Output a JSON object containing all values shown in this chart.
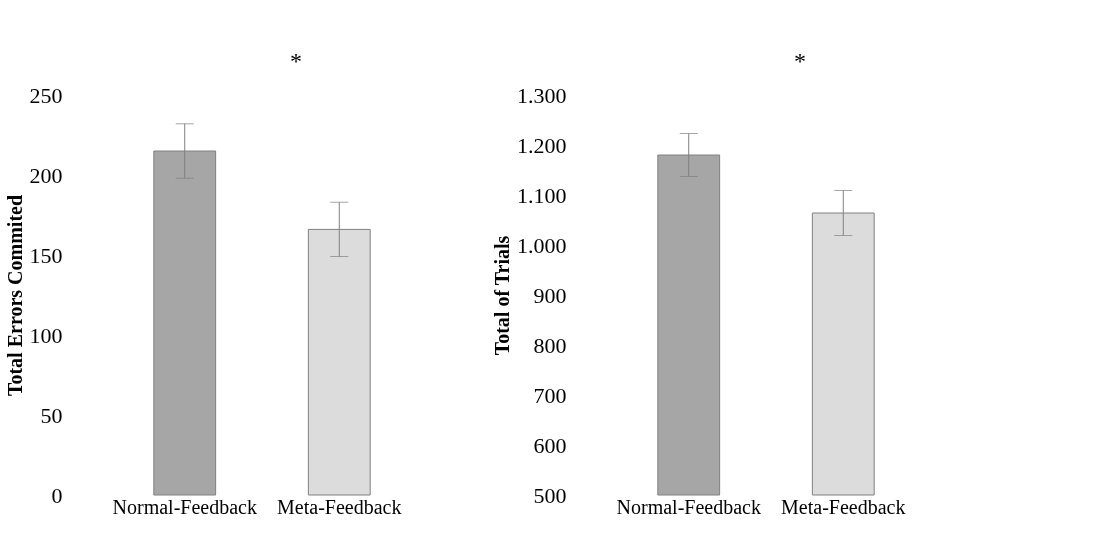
{
  "chart_data": [
    {
      "type": "bar",
      "ylabel": "Total Errors Commited",
      "categories": [
        "Normal-Feedback",
        "Meta-Feedback"
      ],
      "values": [
        215,
        166
      ],
      "colors": [
        "#a6a6a6",
        "#dcdcdc"
      ],
      "errors": [
        17,
        17
      ],
      "ylim": [
        0,
        250
      ],
      "yticks": [
        0,
        50,
        100,
        150,
        200,
        250
      ],
      "grid": false,
      "annotations": [
        "*"
      ]
    },
    {
      "type": "bar",
      "ylabel": "Total of Trials",
      "categories": [
        "Normal-Feedback",
        "Meta-Feedback"
      ],
      "values": [
        1180,
        1064
      ],
      "colors": [
        "#a6a6a6",
        "#dcdcdc"
      ],
      "errors": [
        43,
        45
      ],
      "ylim": [
        500,
        1300
      ],
      "yticks": [
        {
          "value": 500,
          "label": "500"
        },
        {
          "value": 600,
          "label": "600"
        },
        {
          "value": 700,
          "label": "700"
        },
        {
          "value": 800,
          "label": "800"
        },
        {
          "value": 900,
          "label": "900"
        },
        {
          "value": 1000,
          "label": "1.000"
        },
        {
          "value": 1100,
          "label": "1.100"
        },
        {
          "value": 1200,
          "label": "1.200"
        },
        {
          "value": 1300,
          "label": "1.300"
        }
      ],
      "grid": false,
      "annotations": [
        "*"
      ]
    }
  ]
}
